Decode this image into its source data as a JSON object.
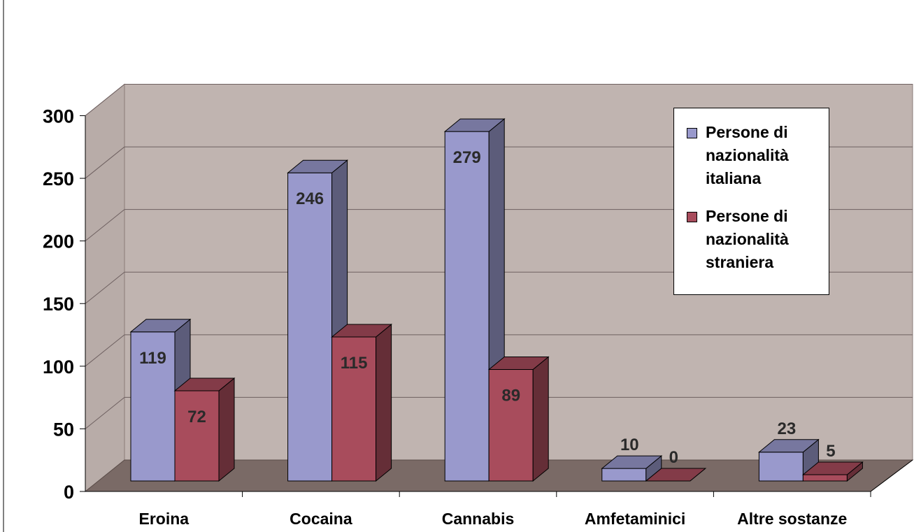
{
  "chart_data": {
    "type": "bar",
    "title": "",
    "xlabel": "",
    "ylabel": "",
    "categories": [
      "Eroina",
      "Cocaina",
      "Cannabis",
      "Amfetaminici",
      "Altre sostanze"
    ],
    "series": [
      {
        "name": "Persone di nazionalità italiana",
        "values": [
          119,
          246,
          279,
          10,
          23
        ],
        "color": "#9999cc"
      },
      {
        "name": "Persone di nazionalità straniera",
        "values": [
          72,
          115,
          89,
          0,
          5
        ],
        "color": "#a84c5c"
      }
    ],
    "ylim": [
      0,
      300
    ],
    "yticks": [
      0,
      50,
      100,
      150,
      200,
      250,
      300
    ],
    "grid": true,
    "legend_position": "right",
    "style": "3d"
  }
}
